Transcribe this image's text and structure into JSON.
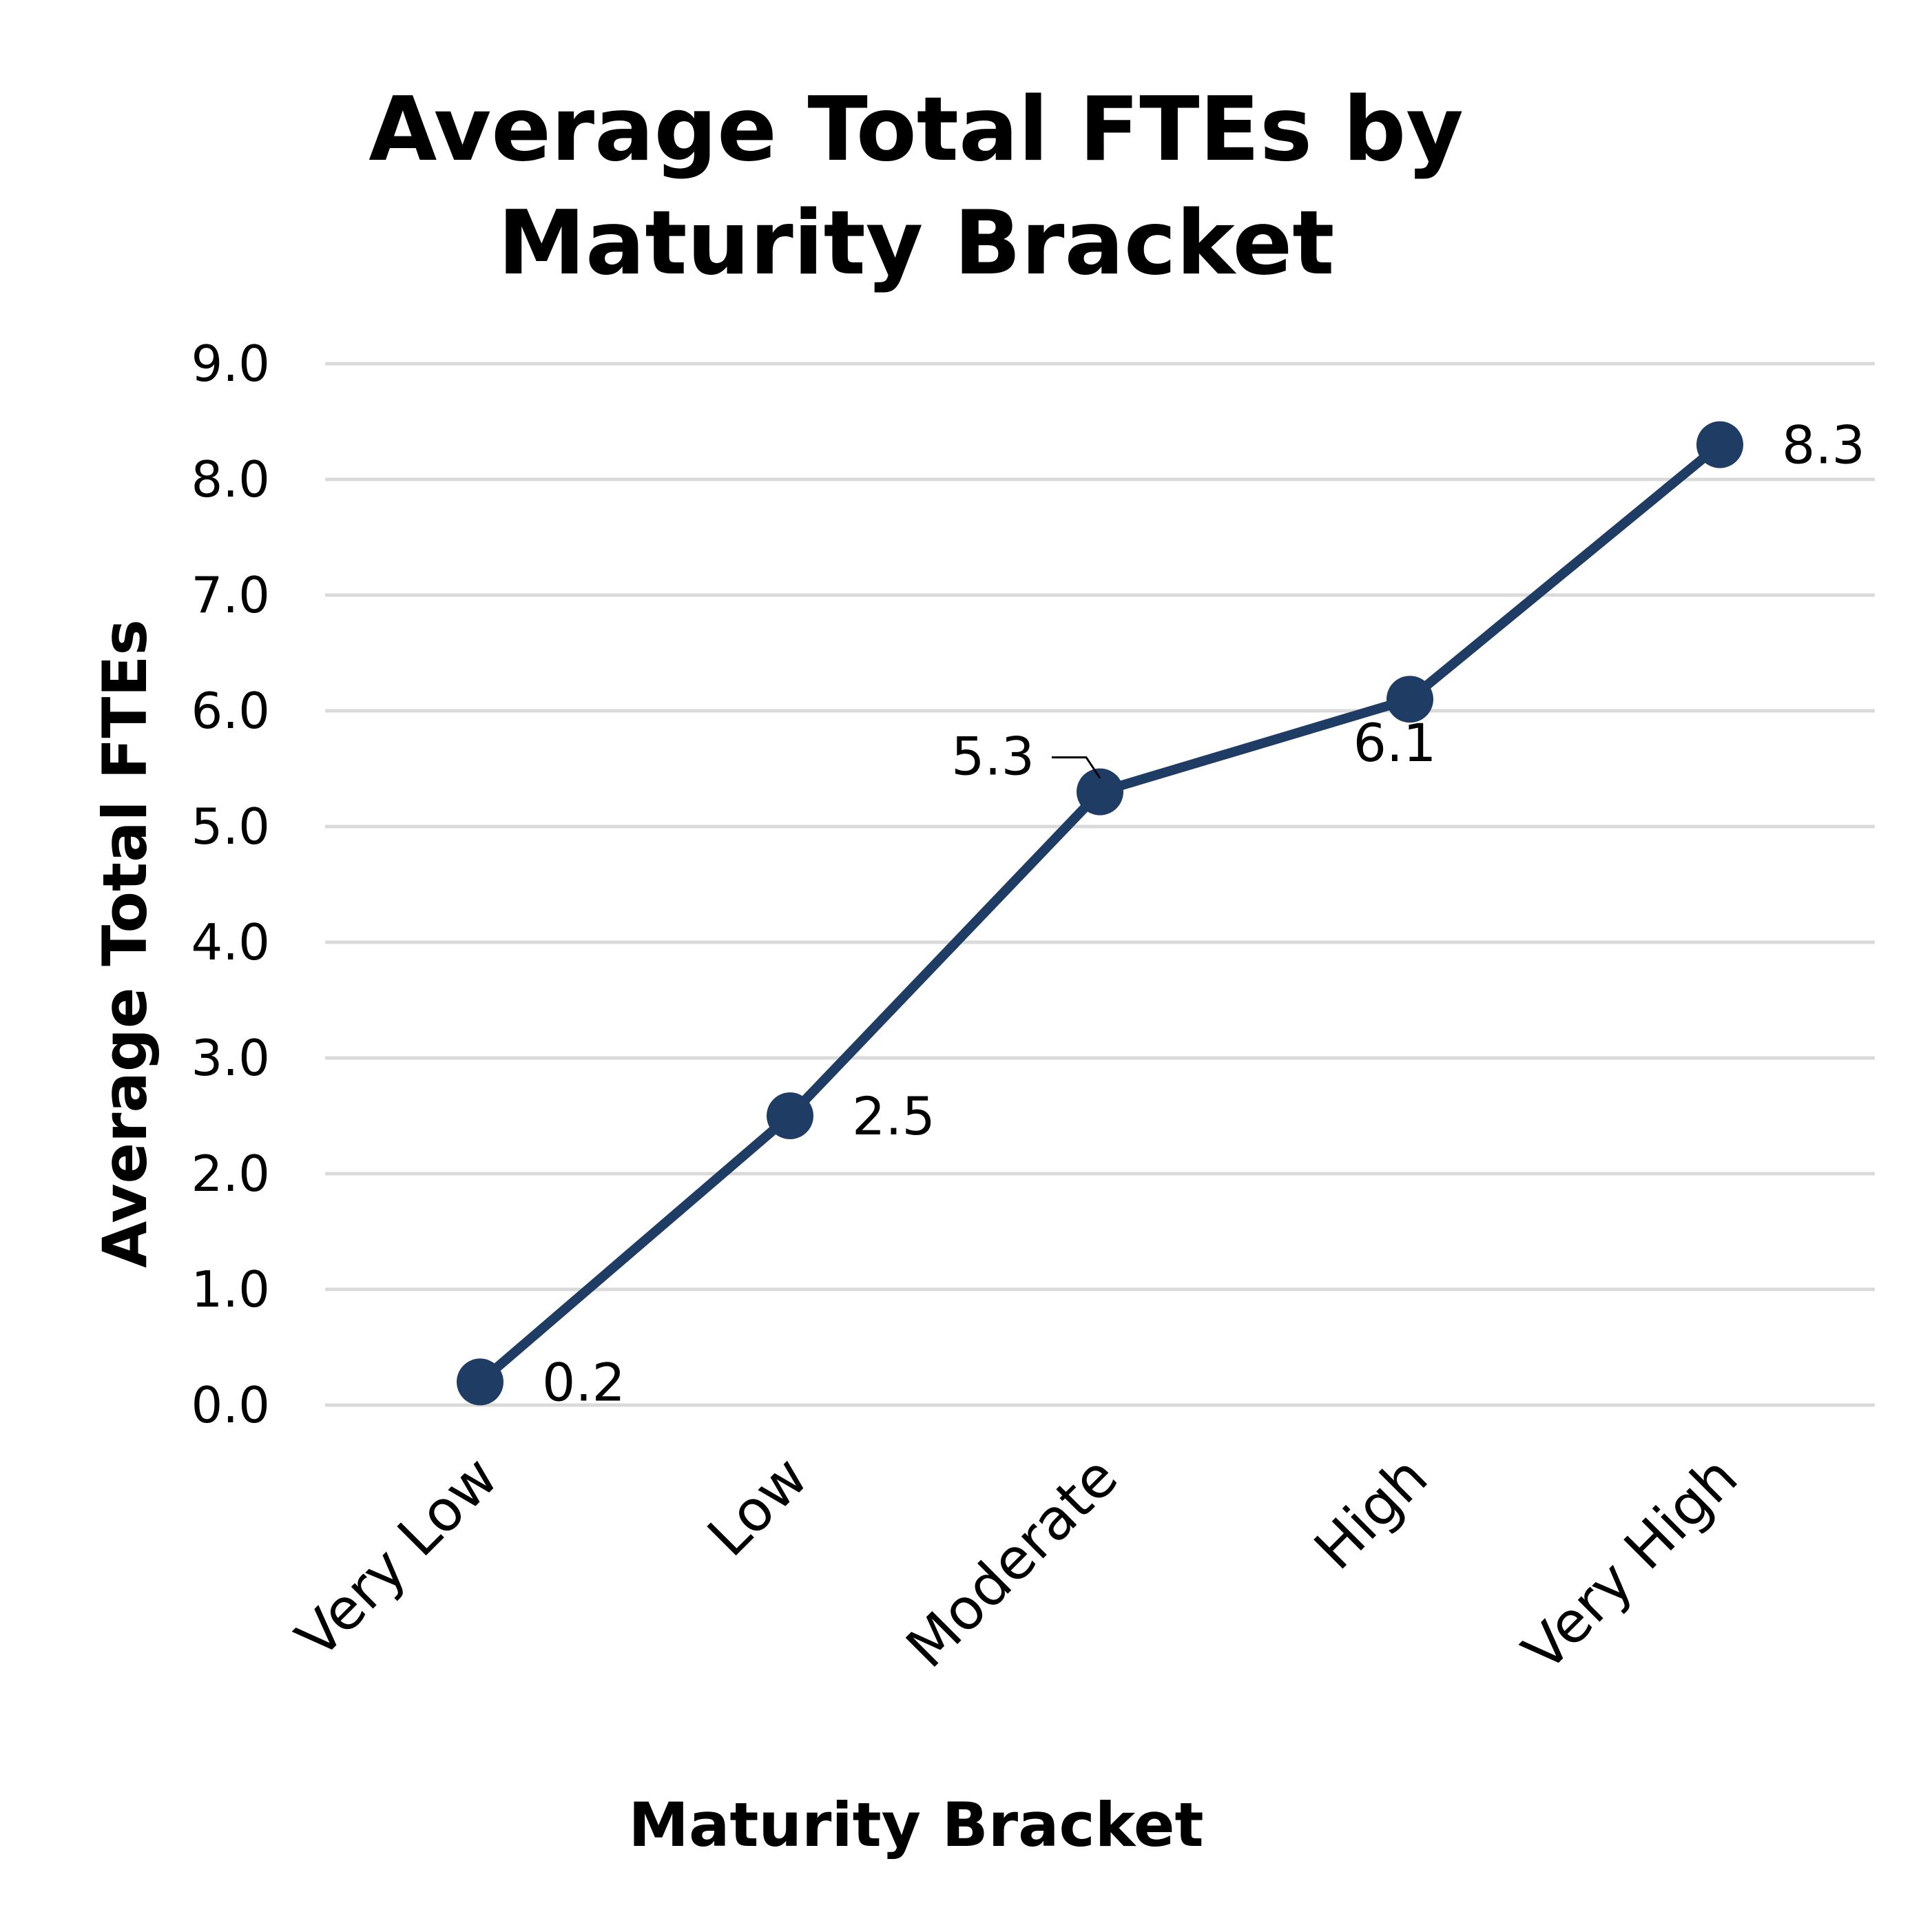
{
  "chart_data": {
    "type": "line",
    "title_lines": [
      "Average Total FTEs by",
      "Maturity Bracket"
    ],
    "xlabel": "Maturity Bracket",
    "ylabel": "Average Total FTEs",
    "categories": [
      "Very Low",
      "Low",
      "Moderate",
      "High",
      "Very High"
    ],
    "values": [
      0.2,
      2.5,
      5.3,
      6.1,
      8.3
    ],
    "data_labels": [
      "0.2",
      "2.5",
      "5.3",
      "6.1",
      "8.3"
    ],
    "yticks": [
      "0.0",
      "1.0",
      "2.0",
      "3.0",
      "4.0",
      "5.0",
      "6.0",
      "7.0",
      "8.0",
      "9.0"
    ],
    "ylim": [
      0,
      9
    ],
    "grid": true,
    "legend": "none",
    "colors": {
      "series": "#1f3c64",
      "grid": "#d9d9d9"
    }
  }
}
